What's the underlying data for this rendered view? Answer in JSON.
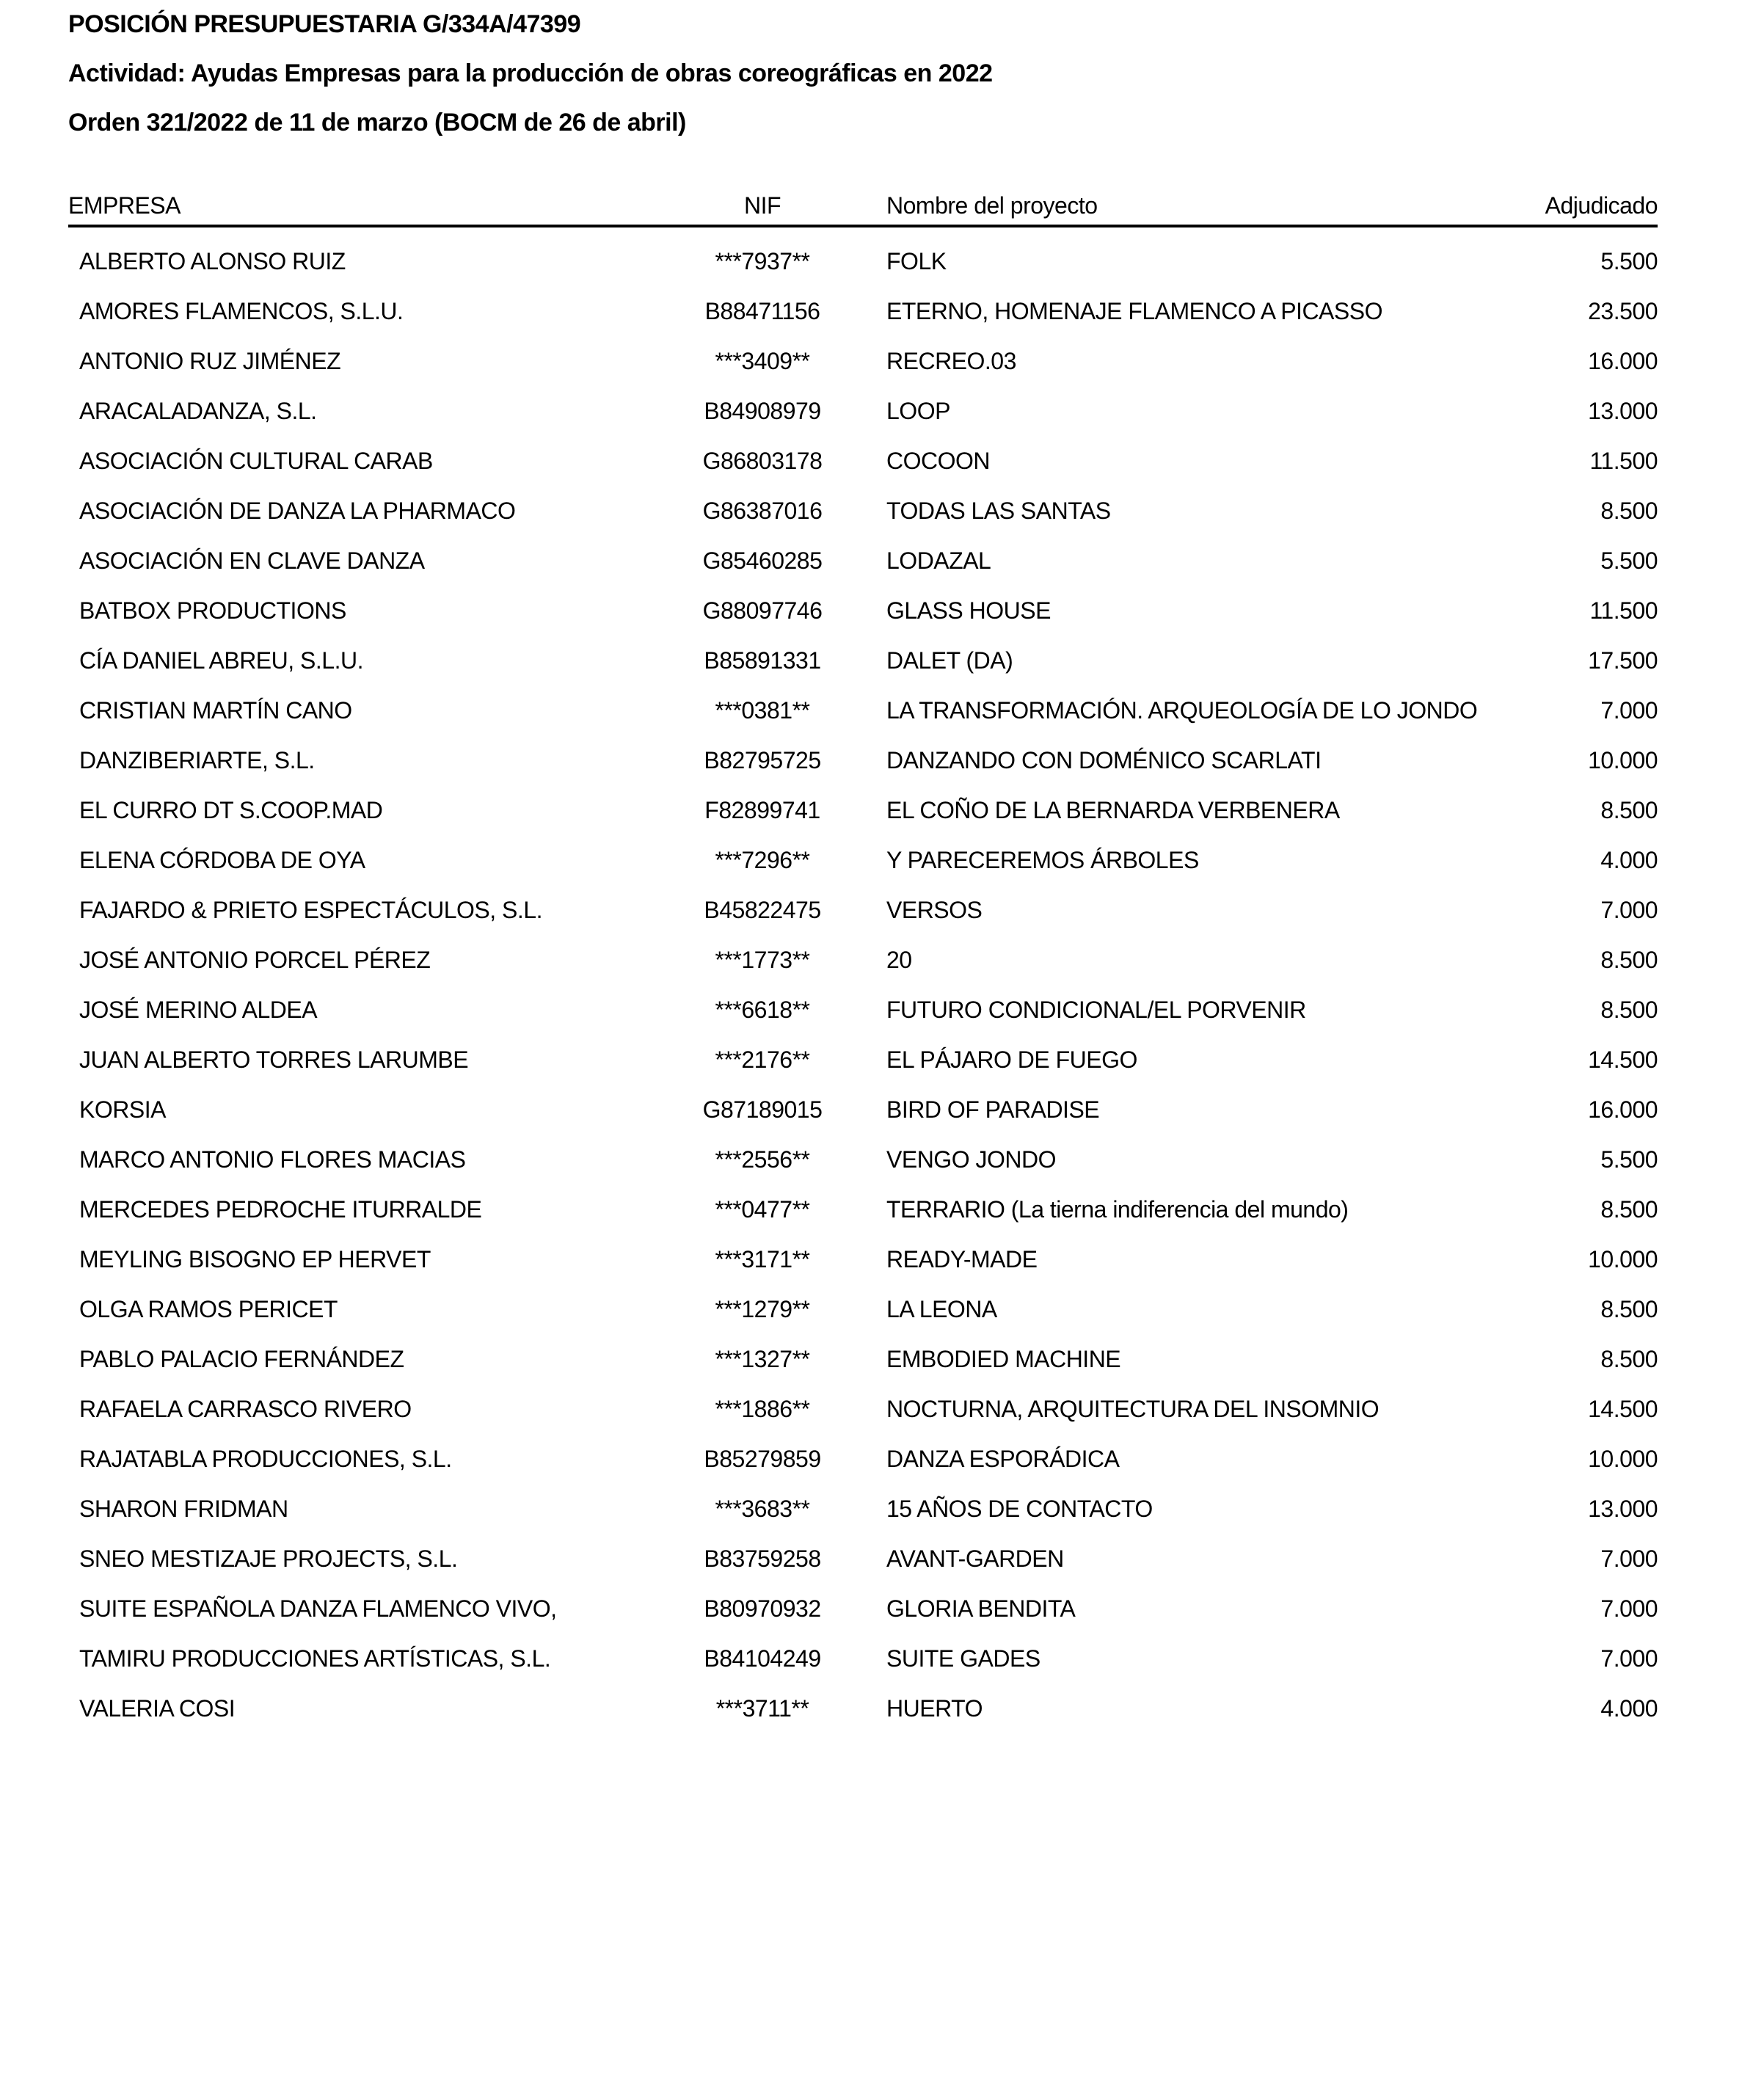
{
  "document": {
    "title": "POSICIÓN PRESUPUESTARIA G/334A/47399",
    "activity_line": "Actividad: Ayudas Empresas para la producción de obras coreográficas en 2022",
    "order_line": "Orden 321/2022 de 11 de marzo (BOCM de 26 de abril)"
  },
  "table": {
    "headers": {
      "empresa": "EMPRESA",
      "nif": "NIF",
      "proyecto": "Nombre del proyecto",
      "adjudicado": "Adjudicado"
    },
    "rows": [
      {
        "empresa": "ALBERTO ALONSO RUIZ",
        "nif": "***7937**",
        "proyecto": "FOLK",
        "adjudicado": "5.500"
      },
      {
        "empresa": "AMORES FLAMENCOS, S.L.U.",
        "nif": "B88471156",
        "proyecto": "ETERNO, HOMENAJE FLAMENCO A PICASSO",
        "adjudicado": "23.500"
      },
      {
        "empresa": "ANTONIO RUZ JIMÉNEZ",
        "nif": "***3409**",
        "proyecto": "RECREO.03",
        "adjudicado": "16.000"
      },
      {
        "empresa": "ARACALADANZA, S.L.",
        "nif": "B84908979",
        "proyecto": "LOOP",
        "adjudicado": "13.000"
      },
      {
        "empresa": "ASOCIACIÓN CULTURAL CARAB",
        "nif": "G86803178",
        "proyecto": "COCOON",
        "adjudicado": "11.500"
      },
      {
        "empresa": "ASOCIACIÓN DE DANZA LA PHARMACO",
        "nif": "G86387016",
        "proyecto": "TODAS LAS SANTAS",
        "adjudicado": "8.500"
      },
      {
        "empresa": "ASOCIACIÓN EN CLAVE DANZA",
        "nif": "G85460285",
        "proyecto": "LODAZAL",
        "adjudicado": "5.500"
      },
      {
        "empresa": "BATBOX PRODUCTIONS",
        "nif": "G88097746",
        "proyecto": "GLASS HOUSE",
        "adjudicado": "11.500"
      },
      {
        "empresa": "CÍA DANIEL ABREU, S.L.U.",
        "nif": "B85891331",
        "proyecto": "DALET (DA)",
        "adjudicado": "17.500"
      },
      {
        "empresa": "CRISTIAN MARTÍN CANO",
        "nif": "***0381**",
        "proyecto": "LA TRANSFORMACIÓN. ARQUEOLOGÍA DE LO JONDO",
        "adjudicado": "7.000"
      },
      {
        "empresa": "DANZIBERIARTE, S.L.",
        "nif": "B82795725",
        "proyecto": "DANZANDO CON DOMÉNICO SCARLATI",
        "adjudicado": "10.000"
      },
      {
        "empresa": "EL CURRO DT S.COOP.MAD",
        "nif": "F82899741",
        "proyecto": "EL COÑO DE LA BERNARDA VERBENERA",
        "adjudicado": "8.500"
      },
      {
        "empresa": "ELENA CÓRDOBA DE OYA",
        "nif": "***7296**",
        "proyecto": "Y PARECEREMOS ÁRBOLES",
        "adjudicado": "4.000"
      },
      {
        "empresa": "FAJARDO & PRIETO ESPECTÁCULOS, S.L.",
        "nif": "B45822475",
        "proyecto": "VERSOS",
        "adjudicado": "7.000"
      },
      {
        "empresa": "JOSÉ ANTONIO PORCEL PÉREZ",
        "nif": "***1773**",
        "proyecto": "20",
        "adjudicado": "8.500"
      },
      {
        "empresa": "JOSÉ MERINO ALDEA",
        "nif": "***6618**",
        "proyecto": "FUTURO CONDICIONAL/EL PORVENIR",
        "adjudicado": "8.500"
      },
      {
        "empresa": "JUAN ALBERTO TORRES LARUMBE",
        "nif": "***2176**",
        "proyecto": "EL PÁJARO DE FUEGO",
        "adjudicado": "14.500"
      },
      {
        "empresa": "KORSIA",
        "nif": "G87189015",
        "proyecto": "BIRD OF PARADISE",
        "adjudicado": "16.000"
      },
      {
        "empresa": "MARCO ANTONIO FLORES MACIAS",
        "nif": "***2556**",
        "proyecto": "VENGO JONDO",
        "adjudicado": "5.500"
      },
      {
        "empresa": "MERCEDES PEDROCHE ITURRALDE",
        "nif": "***0477**",
        "proyecto": "TERRARIO (La tierna indiferencia del mundo)",
        "adjudicado": "8.500"
      },
      {
        "empresa": "MEYLING BISOGNO EP HERVET",
        "nif": "***3171**",
        "proyecto": "READY-MADE",
        "adjudicado": "10.000"
      },
      {
        "empresa": "OLGA RAMOS PERICET",
        "nif": "***1279**",
        "proyecto": "LA LEONA",
        "adjudicado": "8.500"
      },
      {
        "empresa": "PABLO PALACIO FERNÁNDEZ",
        "nif": "***1327**",
        "proyecto": "EMBODIED MACHINE",
        "adjudicado": "8.500"
      },
      {
        "empresa": "RAFAELA CARRASCO RIVERO",
        "nif": "***1886**",
        "proyecto": "NOCTURNA, ARQUITECTURA DEL INSOMNIO",
        "adjudicado": "14.500"
      },
      {
        "empresa": "RAJATABLA PRODUCCIONES, S.L.",
        "nif": "B85279859",
        "proyecto": "DANZA ESPORÁDICA",
        "adjudicado": "10.000"
      },
      {
        "empresa": "SHARON FRIDMAN",
        "nif": "***3683**",
        "proyecto": "15 AÑOS DE CONTACTO",
        "adjudicado": "13.000"
      },
      {
        "empresa": "SNEO MESTIZAJE PROJECTS, S.L.",
        "nif": "B83759258",
        "proyecto": "AVANT-GARDEN",
        "adjudicado": "7.000"
      },
      {
        "empresa": "SUITE ESPAÑOLA DANZA FLAMENCO VIVO,",
        "nif": "B80970932",
        "proyecto": "GLORIA BENDITA",
        "adjudicado": "7.000"
      },
      {
        "empresa": "TAMIRU PRODUCCIONES ARTÍSTICAS, S.L.",
        "nif": "B84104249",
        "proyecto": "SUITE GADES",
        "adjudicado": "7.000"
      },
      {
        "empresa": "VALERIA COSI",
        "nif": "***3711**",
        "proyecto": "HUERTO",
        "adjudicado": "4.000"
      }
    ]
  }
}
